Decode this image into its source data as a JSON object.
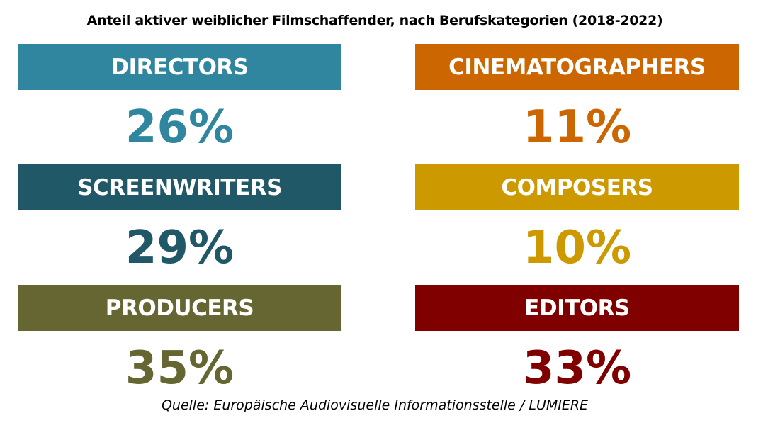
{
  "chart_data": {
    "type": "table",
    "title": "Anteil aktiver weiblicher Filmschaffender, nach Berufskategorien (2018-2022)",
    "unit": "%",
    "categories": [
      "DIRECTORS",
      "SCREENWRITERS",
      "PRODUCERS",
      "CINEMATOGRAPHERS",
      "COMPOSERS",
      "EDITORS"
    ],
    "values": [
      26,
      29,
      35,
      11,
      10,
      33
    ],
    "labels": [
      "26%",
      "29%",
      "35%",
      "11%",
      "10%",
      "33%"
    ],
    "colors": [
      "#31869f",
      "#215868",
      "#666633",
      "#cc6600",
      "#cc9900",
      "#800000"
    ]
  },
  "source": "Quelle: Europäische Audiovisuelle Informationsstelle / LUMIERE"
}
